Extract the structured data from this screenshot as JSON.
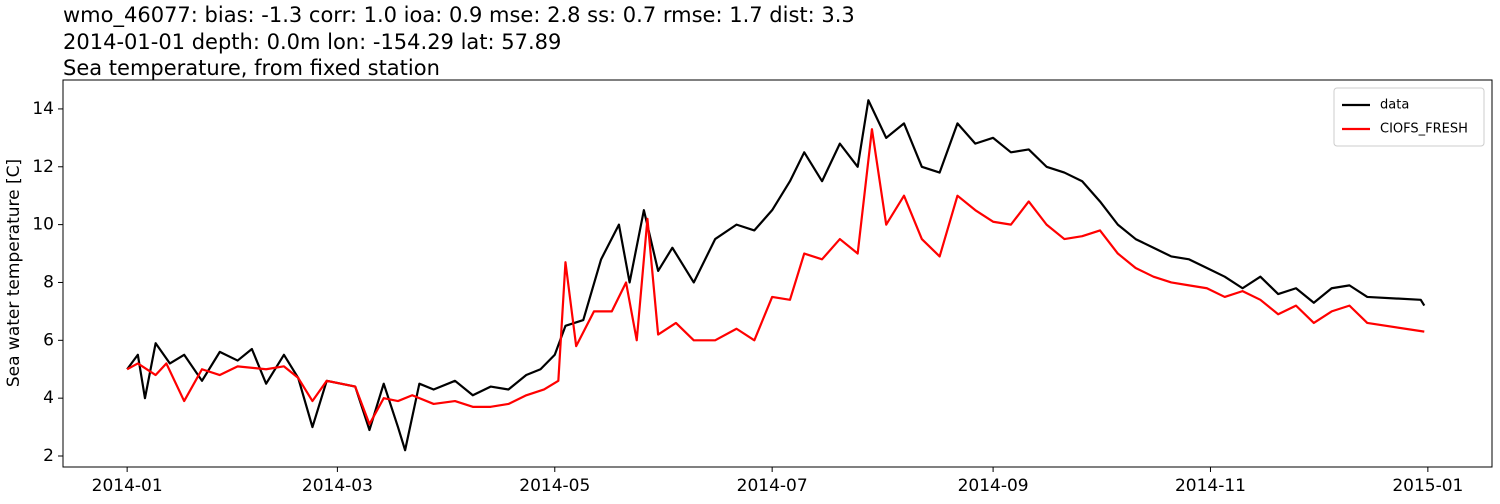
{
  "chart_data": {
    "type": "line",
    "title_lines": [
      "wmo_46077: bias: -1.3  corr: 1.0  ioa: 0.9  mse: 2.8  ss: 0.7  rmse: 1.7  dist: 3.3",
      "2014-01-01 depth: 0.0m lon: -154.29 lat: 57.89",
      "Sea temperature, from fixed station"
    ],
    "y_label": "Sea water temperature [C]",
    "xlim": [
      "2013-12-14",
      "2015-01-19"
    ],
    "xticks": [
      {
        "value": "2014-01-01",
        "label": "2014-01"
      },
      {
        "value": "2014-03-01",
        "label": "2014-03"
      },
      {
        "value": "2014-05-01",
        "label": "2014-05"
      },
      {
        "value": "2014-07-01",
        "label": "2014-07"
      },
      {
        "value": "2014-09-01",
        "label": "2014-09"
      },
      {
        "value": "2014-11-01",
        "label": "2014-11"
      },
      {
        "value": "2015-01-01",
        "label": "2015-01"
      }
    ],
    "ylim": [
      1.62,
      15.0
    ],
    "yticks": [
      2,
      4,
      6,
      8,
      10,
      12,
      14
    ],
    "grid": false,
    "legend": "upper right",
    "series": [
      {
        "name": "data",
        "color": "#000000",
        "x": [
          "2014-01-01",
          "2014-01-04",
          "2014-01-06",
          "2014-01-09",
          "2014-01-13",
          "2014-01-17",
          "2014-01-22",
          "2014-01-27",
          "2014-02-01",
          "2014-02-05",
          "2014-02-09",
          "2014-02-14",
          "2014-02-18",
          "2014-02-22",
          "2014-02-26",
          "2014-03-02",
          "2014-03-06",
          "2014-03-10",
          "2014-03-14",
          "2014-03-18",
          "2014-03-20",
          "2014-03-24",
          "2014-03-28",
          "2014-04-03",
          "2014-04-08",
          "2014-04-13",
          "2014-04-18",
          "2014-04-23",
          "2014-04-27",
          "2014-05-01",
          "2014-05-04",
          "2014-05-09",
          "2014-05-14",
          "2014-05-19",
          "2014-05-22",
          "2014-05-26",
          "2014-05-30",
          "2014-06-03",
          "2014-06-09",
          "2014-06-15",
          "2014-06-21",
          "2014-06-26",
          "2014-07-01",
          "2014-07-06",
          "2014-07-10",
          "2014-07-15",
          "2014-07-20",
          "2014-07-25",
          "2014-07-28",
          "2014-08-02",
          "2014-08-07",
          "2014-08-12",
          "2014-08-17",
          "2014-08-22",
          "2014-08-27",
          "2014-09-01",
          "2014-09-06",
          "2014-09-11",
          "2014-09-16",
          "2014-09-21",
          "2014-09-26",
          "2014-10-01",
          "2014-10-06",
          "2014-10-11",
          "2014-10-16",
          "2014-10-21",
          "2014-10-26",
          "2014-10-31",
          "2014-11-05",
          "2014-11-10",
          "2014-11-15",
          "2014-11-20",
          "2014-11-25",
          "2014-11-30",
          "2014-12-05",
          "2014-12-10",
          "2014-12-15",
          "2014-12-30",
          "2014-12-31"
        ],
        "values": [
          5.0,
          5.5,
          4.0,
          5.9,
          5.2,
          5.5,
          4.6,
          5.6,
          5.3,
          5.7,
          4.5,
          5.5,
          4.7,
          3.0,
          4.6,
          4.5,
          4.4,
          2.9,
          4.5,
          3.0,
          2.2,
          4.5,
          4.3,
          4.6,
          4.1,
          4.4,
          4.3,
          4.8,
          5.0,
          5.5,
          6.5,
          6.7,
          8.8,
          10.0,
          8.0,
          10.5,
          8.4,
          9.2,
          8.0,
          9.5,
          10.0,
          9.8,
          10.5,
          11.5,
          12.5,
          11.5,
          12.8,
          12.0,
          14.3,
          13.0,
          13.5,
          12.0,
          11.8,
          13.5,
          12.8,
          13.0,
          12.5,
          12.6,
          12.0,
          11.8,
          11.5,
          10.8,
          10.0,
          9.5,
          9.2,
          8.9,
          8.8,
          8.5,
          8.2,
          7.8,
          8.2,
          7.6,
          7.8,
          7.3,
          7.8,
          7.9,
          7.5,
          7.4,
          7.2
        ]
      },
      {
        "name": "CIOFS_FRESH",
        "color": "#ff0000",
        "x": [
          "2014-01-01",
          "2014-01-04",
          "2014-01-09",
          "2014-01-12",
          "2014-01-17",
          "2014-01-22",
          "2014-01-27",
          "2014-02-01",
          "2014-02-09",
          "2014-02-14",
          "2014-02-18",
          "2014-02-22",
          "2014-02-26",
          "2014-03-02",
          "2014-03-06",
          "2014-03-10",
          "2014-03-14",
          "2014-03-18",
          "2014-03-22",
          "2014-03-28",
          "2014-04-03",
          "2014-04-08",
          "2014-04-13",
          "2014-04-18",
          "2014-04-23",
          "2014-04-28",
          "2014-05-02",
          "2014-05-04",
          "2014-05-07",
          "2014-05-12",
          "2014-05-17",
          "2014-05-21",
          "2014-05-24",
          "2014-05-27",
          "2014-05-30",
          "2014-06-04",
          "2014-06-09",
          "2014-06-15",
          "2014-06-21",
          "2014-06-26",
          "2014-07-01",
          "2014-07-06",
          "2014-07-10",
          "2014-07-15",
          "2014-07-20",
          "2014-07-25",
          "2014-07-29",
          "2014-08-02",
          "2014-08-07",
          "2014-08-12",
          "2014-08-17",
          "2014-08-22",
          "2014-08-27",
          "2014-09-01",
          "2014-09-06",
          "2014-09-11",
          "2014-09-16",
          "2014-09-21",
          "2014-09-26",
          "2014-10-01",
          "2014-10-06",
          "2014-10-11",
          "2014-10-16",
          "2014-10-21",
          "2014-10-26",
          "2014-10-31",
          "2014-11-05",
          "2014-11-10",
          "2014-11-15",
          "2014-11-20",
          "2014-11-25",
          "2014-11-30",
          "2014-12-05",
          "2014-12-10",
          "2014-12-15",
          "2014-12-31"
        ],
        "values": [
          5.0,
          5.2,
          4.8,
          5.2,
          3.9,
          5.0,
          4.8,
          5.1,
          5.0,
          5.1,
          4.7,
          3.9,
          4.6,
          4.5,
          4.4,
          3.1,
          4.0,
          3.9,
          4.1,
          3.8,
          3.9,
          3.7,
          3.7,
          3.8,
          4.1,
          4.3,
          4.6,
          8.7,
          5.8,
          7.0,
          7.0,
          8.0,
          6.0,
          10.2,
          6.2,
          6.6,
          6.0,
          6.0,
          6.4,
          6.0,
          7.5,
          7.4,
          9.0,
          8.8,
          9.5,
          9.0,
          13.3,
          10.0,
          11.0,
          9.5,
          8.9,
          11.0,
          10.5,
          10.1,
          10.0,
          10.8,
          10.0,
          9.5,
          9.6,
          9.8,
          9.0,
          8.5,
          8.2,
          8.0,
          7.9,
          7.8,
          7.5,
          7.7,
          7.4,
          6.9,
          7.2,
          6.6,
          7.0,
          7.2,
          6.6,
          6.3
        ]
      }
    ]
  }
}
